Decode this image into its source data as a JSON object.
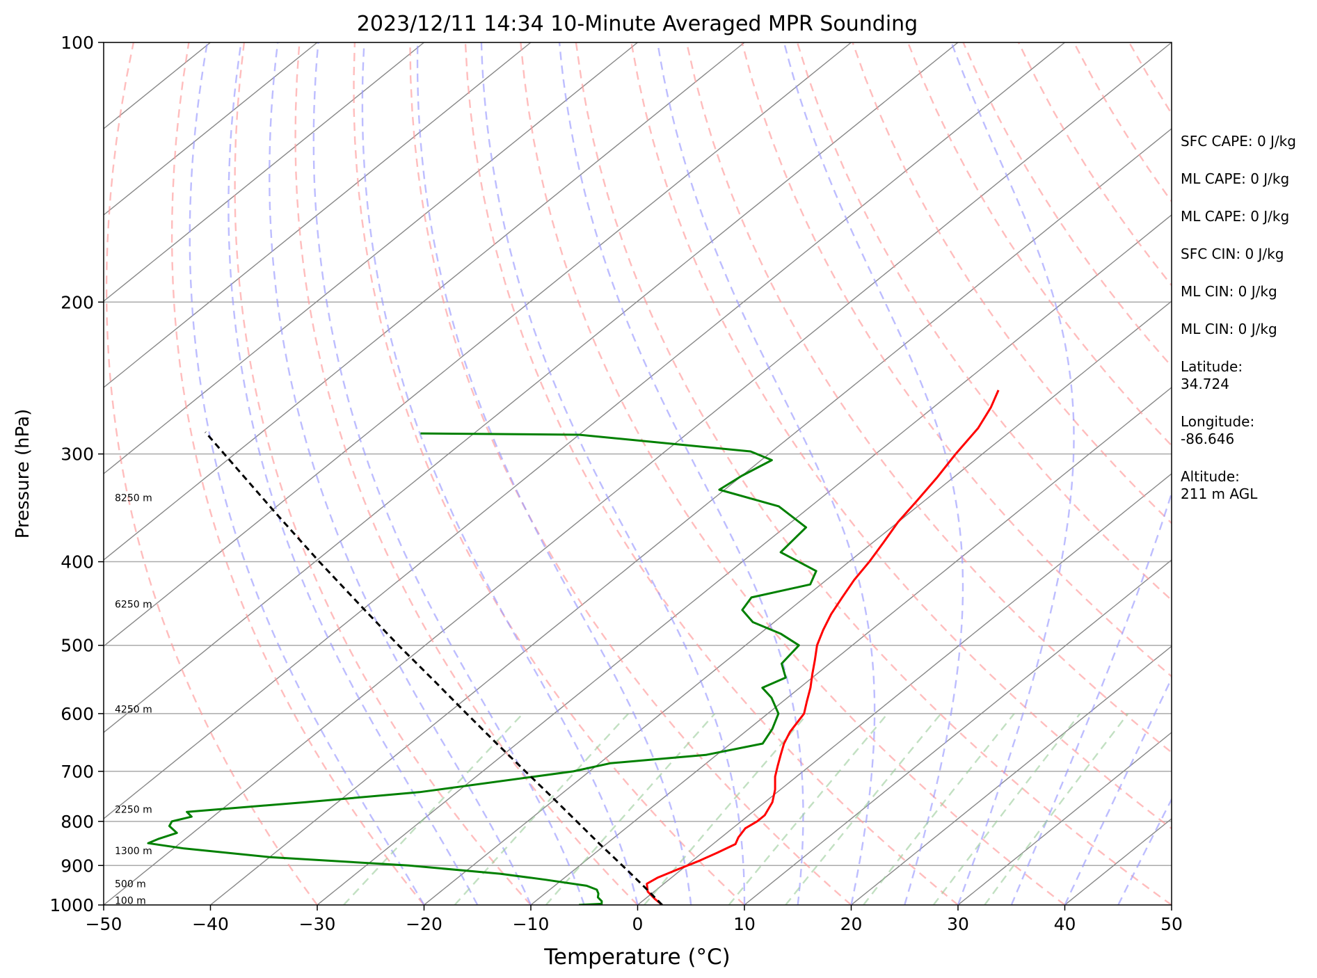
{
  "chart_data": {
    "type": "line",
    "title": "2023/12/11 14:34 10-Minute Averaged MPR Sounding",
    "xlabel": "Temperature (°C)",
    "ylabel": "Pressure (hPa)",
    "xlim": [
      -50,
      50
    ],
    "ylim": [
      1000,
      100
    ],
    "y_scale": "log",
    "skew": true,
    "grid": true,
    "x_ticks": [
      -50,
      -40,
      -30,
      -20,
      -10,
      0,
      10,
      20,
      30,
      40,
      50
    ],
    "x_tick_labels": [
      "−50",
      "−40",
      "−30",
      "−20",
      "−10",
      "0",
      "10",
      "20",
      "30",
      "40",
      "50"
    ],
    "y_ticks": [
      1000,
      900,
      800,
      700,
      600,
      500,
      400,
      300,
      200,
      100
    ],
    "y_tick_labels": [
      "1000",
      "900",
      "800",
      "700",
      "600",
      "500",
      "400",
      "300",
      "200",
      "100"
    ],
    "height_labels": [
      {
        "text": "100 m",
        "p": 988
      },
      {
        "text": "500 m",
        "p": 945
      },
      {
        "text": "1300 m",
        "p": 865
      },
      {
        "text": "2250 m",
        "p": 775
      },
      {
        "text": "4250 m",
        "p": 593
      },
      {
        "text": "6250 m",
        "p": 448
      },
      {
        "text": "8250 m",
        "p": 337
      }
    ],
    "info_text": [
      "SFC CAPE: 0 J/kg",
      "ML CAPE: 0 J/kg",
      "ML CAPE: 0 J/kg",
      "SFC CIN: 0 J/kg",
      "ML CIN: 0 J/kg",
      "ML CIN: 0 J/kg",
      "Latitude:\n34.724",
      "Longitude:\n-86.646",
      "Altitude:\n211 m AGL"
    ],
    "dry_adiabats_K": [
      -30,
      -20,
      -10,
      0,
      10,
      20,
      30,
      40,
      50,
      60,
      70,
      80,
      90,
      100,
      110,
      120,
      130,
      140,
      150,
      160,
      170,
      180,
      190,
      200
    ],
    "moist_adiabats_start_C": [
      -20,
      -15,
      -10,
      -5,
      0,
      5,
      10,
      15,
      20,
      25,
      30,
      35,
      40,
      45
    ],
    "mixing_ratios_gkg": [
      0.4,
      1,
      2,
      4,
      7,
      10,
      16,
      24,
      32
    ],
    "colors": {
      "temperature": "#ff0000",
      "dewpoint": "#008000",
      "parcel": "#000000",
      "dry_adiabat": "#ff9999",
      "moist_adiabat": "#9999ff",
      "mixing_ratio": "#99cc99",
      "isotherm": "#888888",
      "isobar": "#aaaaaa"
    },
    "series": [
      {
        "key": "temperature",
        "points": [
          [
            1000,
            2.3
          ],
          [
            985,
            1.0
          ],
          [
            965,
            -0.6
          ],
          [
            945,
            -1.6
          ],
          [
            930,
            -1.3
          ],
          [
            910,
            -0.4
          ],
          [
            890,
            0.6
          ],
          [
            870,
            1.4
          ],
          [
            850,
            2.1
          ],
          [
            835,
            1.6
          ],
          [
            815,
            1.2
          ],
          [
            800,
            1.5
          ],
          [
            787,
            1.5
          ],
          [
            760,
            0.7
          ],
          [
            735,
            -0.5
          ],
          [
            710,
            -2.0
          ],
          [
            690,
            -3.0
          ],
          [
            670,
            -4.0
          ],
          [
            650,
            -5.0
          ],
          [
            630,
            -5.8
          ],
          [
            600,
            -6.6
          ],
          [
            580,
            -7.8
          ],
          [
            560,
            -9.0
          ],
          [
            540,
            -10.4
          ],
          [
            520,
            -11.8
          ],
          [
            500,
            -13.3
          ],
          [
            480,
            -14.5
          ],
          [
            460,
            -15.6
          ],
          [
            440,
            -16.5
          ],
          [
            420,
            -17.4
          ],
          [
            400,
            -18.1
          ],
          [
            380,
            -19.0
          ],
          [
            360,
            -20.0
          ],
          [
            340,
            -20.7
          ],
          [
            320,
            -21.5
          ],
          [
            300,
            -22.5
          ],
          [
            280,
            -23.4
          ],
          [
            265,
            -24.6
          ],
          [
            253,
            -25.9
          ]
        ]
      },
      {
        "key": "dewpoint",
        "points": [
          [
            1000,
            -5.5
          ],
          [
            997,
            -3.5
          ],
          [
            990,
            -3.8
          ],
          [
            980,
            -4.6
          ],
          [
            970,
            -5.0
          ],
          [
            960,
            -5.6
          ],
          [
            950,
            -7.0
          ],
          [
            935,
            -11.5
          ],
          [
            920,
            -16.5
          ],
          [
            900,
            -26.0
          ],
          [
            880,
            -40.0
          ],
          [
            860,
            -49.0
          ],
          [
            848,
            -53.0
          ],
          [
            838,
            -52.5
          ],
          [
            825,
            -51.5
          ],
          [
            810,
            -53.0
          ],
          [
            800,
            -53.3
          ],
          [
            790,
            -52.0
          ],
          [
            780,
            -53.0
          ],
          [
            760,
            -43.0
          ],
          [
            740,
            -33.5
          ],
          [
            700,
            -21.5
          ],
          [
            685,
            -19.0
          ],
          [
            670,
            -11.0
          ],
          [
            650,
            -7.0
          ],
          [
            625,
            -7.8
          ],
          [
            600,
            -9.0
          ],
          [
            575,
            -11.5
          ],
          [
            560,
            -13.5
          ],
          [
            545,
            -12.5
          ],
          [
            525,
            -14.5
          ],
          [
            500,
            -15.0
          ],
          [
            485,
            -18.0
          ],
          [
            470,
            -22.0
          ],
          [
            455,
            -24.4
          ],
          [
            440,
            -25.0
          ],
          [
            425,
            -21.0
          ],
          [
            410,
            -22.0
          ],
          [
            390,
            -27.5
          ],
          [
            375,
            -27.8
          ],
          [
            365,
            -28.0
          ],
          [
            345,
            -33.0
          ],
          [
            330,
            -40.5
          ],
          [
            318,
            -40.0
          ],
          [
            305,
            -39.0
          ],
          [
            298,
            -42.0
          ],
          [
            285,
            -60.0
          ],
          [
            284,
            -75.0
          ]
        ]
      },
      {
        "key": "parcel",
        "points": [
          [
            1000,
            2.3
          ],
          [
            950,
            -1.7
          ],
          [
            900,
            -6.0
          ],
          [
            850,
            -10.6
          ],
          [
            800,
            -15.4
          ],
          [
            750,
            -20.5
          ],
          [
            700,
            -26.0
          ],
          [
            650,
            -31.9
          ],
          [
            600,
            -38.2
          ],
          [
            550,
            -45.0
          ],
          [
            500,
            -52.5
          ],
          [
            450,
            -60.6
          ],
          [
            400,
            -69.6
          ],
          [
            350,
            -79.6
          ],
          [
            300,
            -91.0
          ],
          [
            283,
            -95.3
          ]
        ]
      }
    ]
  }
}
